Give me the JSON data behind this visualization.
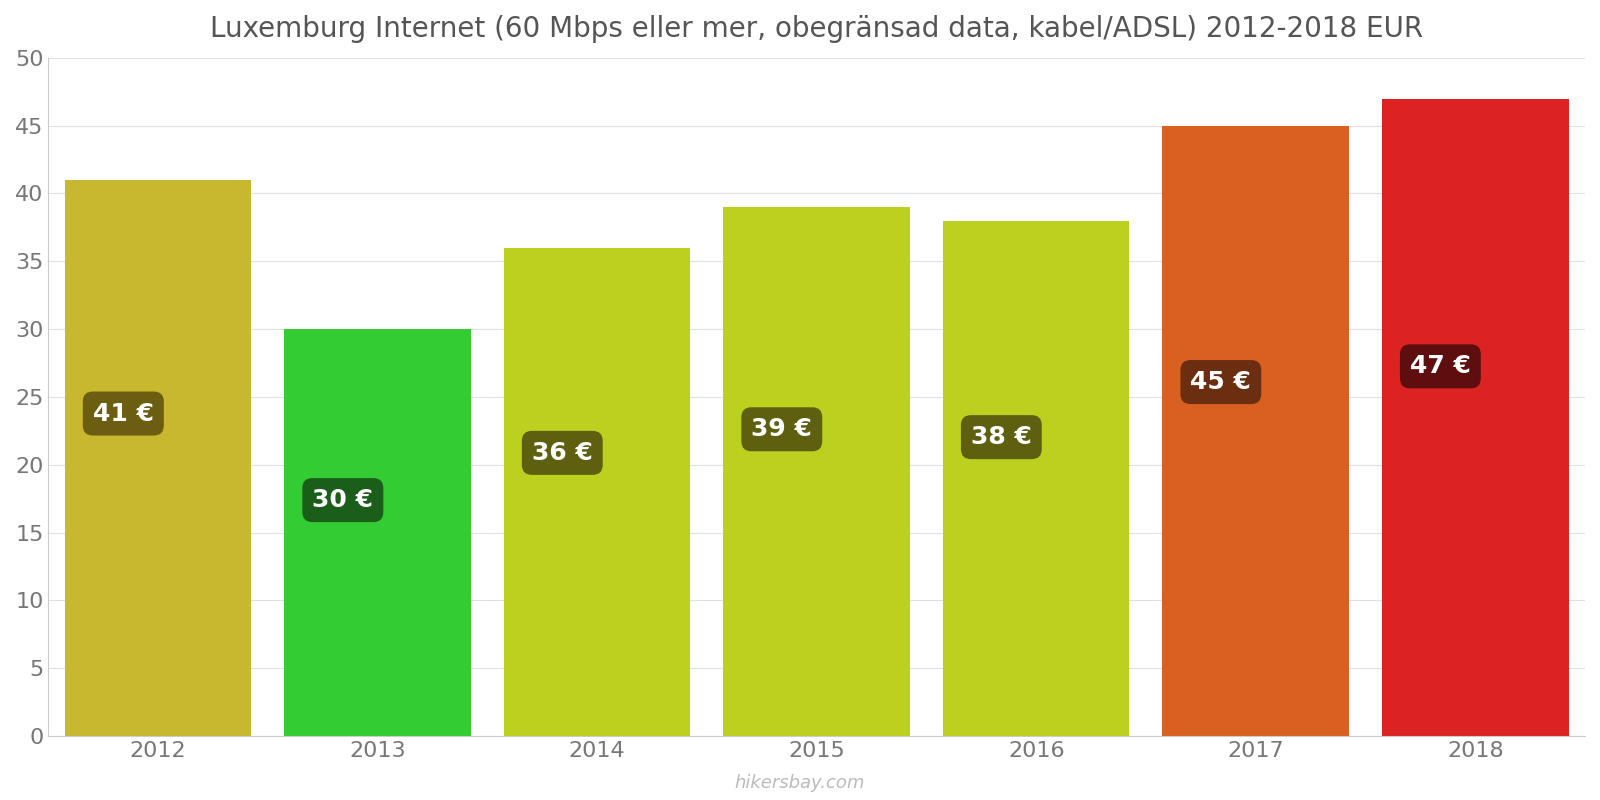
{
  "years": [
    "2012",
    "2013",
    "2014",
    "2015",
    "2016",
    "2017",
    "2018"
  ],
  "values": [
    41,
    30,
    36,
    39,
    38,
    45,
    47
  ],
  "bar_colors": [
    "#c8b830",
    "#33cc33",
    "#bcd020",
    "#bcd020",
    "#bcd020",
    "#d96020",
    "#dd2222"
  ],
  "label_bg_colors": [
    "#6b5e10",
    "#1a5e1a",
    "#5e6010",
    "#5e6010",
    "#5e6010",
    "#6b2e10",
    "#5e0e0e"
  ],
  "labels": [
    "41 €",
    "30 €",
    "36 €",
    "39 €",
    "38 €",
    "45 €",
    "47 €"
  ],
  "title": "Luxemburg Internet (60 Mbps eller mer, obegränsad data, kabel/ADSL) 2012-2018 EUR",
  "ylim": [
    0,
    50
  ],
  "yticks": [
    0,
    5,
    10,
    15,
    20,
    25,
    30,
    35,
    40,
    45,
    50
  ],
  "watermark": "hikersbay.com",
  "background_color": "#ffffff",
  "title_fontsize": 20,
  "tick_fontsize": 16,
  "label_fontsize": 18,
  "bar_width": 0.85
}
